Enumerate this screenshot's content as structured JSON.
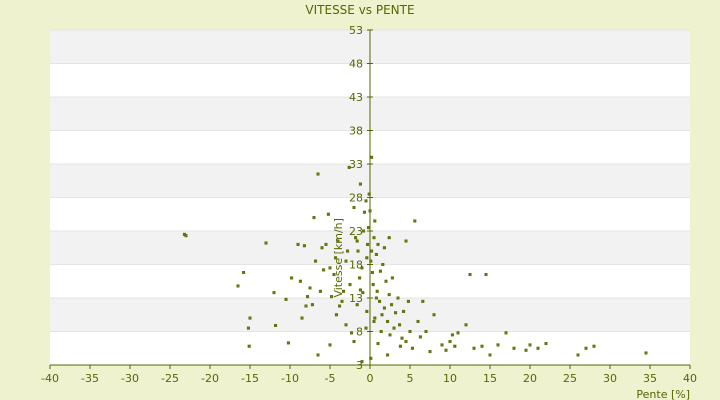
{
  "chart_data": {
    "type": "scatter",
    "title": "VITESSE vs PENTE",
    "xlabel": "Pente [%]",
    "ylabel": "Vitesse [km/h]",
    "xlim": [
      -40,
      40
    ],
    "ylim": [
      3,
      53
    ],
    "x_ticks": [
      -40,
      -35,
      -30,
      -25,
      -20,
      -15,
      -10,
      -5,
      0,
      5,
      10,
      15,
      20,
      25,
      30,
      35,
      40
    ],
    "y_ticks": [
      3,
      8,
      13,
      18,
      23,
      28,
      33,
      38,
      43,
      48,
      53
    ],
    "grid": true,
    "legend": "none",
    "colors": {
      "background": "#eef2cf",
      "plot_band_light": "#ffffff",
      "plot_band_dark": "#f2f2f2",
      "axis": "#5a6400",
      "marker": "#6b7a00"
    },
    "points": [
      [
        -23.2,
        22.5
      ],
      [
        -23.0,
        22.3
      ],
      [
        -16.5,
        14.8
      ],
      [
        -15.8,
        16.8
      ],
      [
        -15.2,
        8.5
      ],
      [
        -15.0,
        10.0
      ],
      [
        -15.1,
        5.8
      ],
      [
        -13.0,
        21.2
      ],
      [
        -12.0,
        13.8
      ],
      [
        -11.8,
        8.9
      ],
      [
        -10.5,
        12.8
      ],
      [
        -10.2,
        6.3
      ],
      [
        -9.8,
        16.0
      ],
      [
        -9.0,
        21.0
      ],
      [
        -8.7,
        15.5
      ],
      [
        -8.2,
        20.8
      ],
      [
        -8.5,
        10.0
      ],
      [
        -8.0,
        11.8
      ],
      [
        -7.8,
        13.2
      ],
      [
        -7.5,
        14.5
      ],
      [
        -7.2,
        12.0
      ],
      [
        -7.0,
        25.0
      ],
      [
        -6.8,
        18.5
      ],
      [
        -6.5,
        31.5
      ],
      [
        -6.2,
        14.0
      ],
      [
        -6.0,
        20.5
      ],
      [
        -5.8,
        17.2
      ],
      [
        -5.5,
        21.0
      ],
      [
        -5.2,
        25.5
      ],
      [
        -5.0,
        17.5
      ],
      [
        -4.8,
        13.2
      ],
      [
        -4.5,
        16.5
      ],
      [
        -4.3,
        19.0
      ],
      [
        -4.0,
        21.5
      ],
      [
        -3.8,
        11.8
      ],
      [
        -3.5,
        12.5
      ],
      [
        -3.3,
        14.0
      ],
      [
        -3.0,
        18.5
      ],
      [
        -2.8,
        20.0
      ],
      [
        -2.5,
        15.0
      ],
      [
        -2.3,
        7.8
      ],
      [
        -2.0,
        26.5
      ],
      [
        -1.8,
        22.0
      ],
      [
        -1.6,
        21.5
      ],
      [
        -1.5,
        20.0
      ],
      [
        -1.3,
        16.0
      ],
      [
        -1.2,
        14.2
      ],
      [
        -1.0,
        17.5
      ],
      [
        -0.8,
        23.0
      ],
      [
        -0.7,
        25.8
      ],
      [
        -0.5,
        27.5
      ],
      [
        -0.4,
        19.0
      ],
      [
        -0.3,
        21.0
      ],
      [
        -0.2,
        23.5
      ],
      [
        0.0,
        26.0
      ],
      [
        0.1,
        18.5
      ],
      [
        0.2,
        20.0
      ],
      [
        0.3,
        16.8
      ],
      [
        0.4,
        15.0
      ],
      [
        0.5,
        22.0
      ],
      [
        0.6,
        24.5
      ],
      [
        0.8,
        19.5
      ],
      [
        0.9,
        14.0
      ],
      [
        1.0,
        21.0
      ],
      [
        1.2,
        12.5
      ],
      [
        1.3,
        17.0
      ],
      [
        1.5,
        10.5
      ],
      [
        1.6,
        18.0
      ],
      [
        1.8,
        11.5
      ],
      [
        2.0,
        15.5
      ],
      [
        2.2,
        9.5
      ],
      [
        2.4,
        13.5
      ],
      [
        2.5,
        7.5
      ],
      [
        2.7,
        12.0
      ],
      [
        3.0,
        8.5
      ],
      [
        3.2,
        10.8
      ],
      [
        3.5,
        13.0
      ],
      [
        3.7,
        9.0
      ],
      [
        4.0,
        7.0
      ],
      [
        4.2,
        11.0
      ],
      [
        4.5,
        21.5
      ],
      [
        4.8,
        12.5
      ],
      [
        5.0,
        8.0
      ],
      [
        5.3,
        5.5
      ],
      [
        5.6,
        24.5
      ],
      [
        6.0,
        9.5
      ],
      [
        6.3,
        7.2
      ],
      [
        6.6,
        12.5
      ],
      [
        7.0,
        8.0
      ],
      [
        7.5,
        5.0
      ],
      [
        8.0,
        10.5
      ],
      [
        9.0,
        6.0
      ],
      [
        9.5,
        5.2
      ],
      [
        10.0,
        6.5
      ],
      [
        10.3,
        7.5
      ],
      [
        10.6,
        5.8
      ],
      [
        11.0,
        7.8
      ],
      [
        12.0,
        9.0
      ],
      [
        12.5,
        16.5
      ],
      [
        13.0,
        5.5
      ],
      [
        14.0,
        5.8
      ],
      [
        14.5,
        16.5
      ],
      [
        15.0,
        4.5
      ],
      [
        16.0,
        6.0
      ],
      [
        17.0,
        7.8
      ],
      [
        18.0,
        5.5
      ],
      [
        19.5,
        5.2
      ],
      [
        20.0,
        6.0
      ],
      [
        21.0,
        5.5
      ],
      [
        22.0,
        6.2
      ],
      [
        26.0,
        4.5
      ],
      [
        27.0,
        5.5
      ],
      [
        28.0,
        5.8
      ],
      [
        34.5,
        4.8
      ],
      [
        -6.5,
        4.5
      ],
      [
        -1.0,
        3.5
      ],
      [
        0.1,
        4.0
      ],
      [
        2.2,
        4.5
      ],
      [
        1.0,
        6.2
      ],
      [
        0.5,
        9.5
      ],
      [
        -0.5,
        8.5
      ],
      [
        -2.0,
        6.5
      ],
      [
        -3.0,
        9.0
      ],
      [
        -4.2,
        10.5
      ],
      [
        -5.0,
        6.0
      ],
      [
        3.8,
        5.8
      ],
      [
        4.5,
        6.5
      ],
      [
        0.2,
        34.0
      ],
      [
        -0.1,
        28.5
      ],
      [
        -1.2,
        30.0
      ],
      [
        -2.6,
        32.5
      ],
      [
        0.8,
        13.0
      ],
      [
        1.8,
        20.5
      ],
      [
        2.8,
        16.0
      ],
      [
        -0.4,
        11.0
      ],
      [
        -1.6,
        12.0
      ],
      [
        0.6,
        10.0
      ],
      [
        1.4,
        8.0
      ],
      [
        -0.9,
        13.8
      ],
      [
        2.4,
        22.0
      ]
    ]
  }
}
